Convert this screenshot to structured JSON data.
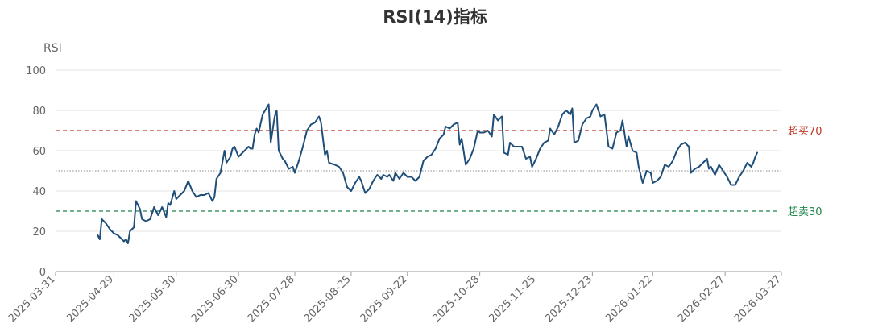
{
  "chart_data": {
    "type": "line",
    "title": "RSI(14)指标",
    "ylabel": "RSI",
    "xlabel": "",
    "ylim": [
      0,
      100
    ],
    "yticks": [
      0,
      20,
      40,
      60,
      80,
      100
    ],
    "grid": true,
    "x_range": [
      "2025-03-31",
      "2026-03-27"
    ],
    "xticks": [
      "2025-03-31",
      "2025-04-29",
      "2025-05-30",
      "2025-06-30",
      "2025-07-28",
      "2025-08-25",
      "2025-09-22",
      "2025-10-28",
      "2025-11-25",
      "2025-12-23",
      "2026-01-22",
      "2026-02-27",
      "2026-03-27"
    ],
    "reference_lines": [
      {
        "label": "超买70",
        "value": 70,
        "color": "#c0392b",
        "style": "dashed"
      },
      {
        "label": "超卖30",
        "value": 30,
        "color": "#1e8449",
        "style": "dashed"
      },
      {
        "label": "",
        "value": 50,
        "color": "#888888",
        "style": "dotted"
      }
    ],
    "series": [
      {
        "color": "#1f4e79",
        "points": [
          [
            "2025-04-21",
            18
          ],
          [
            "2025-04-22",
            16
          ],
          [
            "2025-04-23",
            26
          ],
          [
            "2025-04-25",
            24
          ],
          [
            "2025-04-27",
            21
          ],
          [
            "2025-04-29",
            19
          ],
          [
            "2025-05-01",
            18
          ],
          [
            "2025-05-04",
            15
          ],
          [
            "2025-05-05",
            16
          ],
          [
            "2025-05-06",
            14
          ],
          [
            "2025-05-07",
            20
          ],
          [
            "2025-05-09",
            22
          ],
          [
            "2025-05-10",
            35
          ],
          [
            "2025-05-12",
            31
          ],
          [
            "2025-05-13",
            26
          ],
          [
            "2025-05-15",
            25
          ],
          [
            "2025-05-17",
            26
          ],
          [
            "2025-05-19",
            32
          ],
          [
            "2025-05-21",
            28
          ],
          [
            "2025-05-23",
            32
          ],
          [
            "2025-05-25",
            27
          ],
          [
            "2025-05-26",
            34
          ],
          [
            "2025-05-27",
            33
          ],
          [
            "2025-05-29",
            40
          ],
          [
            "2025-05-30",
            36
          ],
          [
            "2025-06-01",
            38
          ],
          [
            "2025-06-03",
            40
          ],
          [
            "2025-06-05",
            45
          ],
          [
            "2025-06-07",
            40
          ],
          [
            "2025-06-09",
            37
          ],
          [
            "2025-06-11",
            38
          ],
          [
            "2025-06-13",
            38
          ],
          [
            "2025-06-15",
            39
          ],
          [
            "2025-06-17",
            35
          ],
          [
            "2025-06-18",
            37
          ],
          [
            "2025-06-19",
            46
          ],
          [
            "2025-06-21",
            49
          ],
          [
            "2025-06-23",
            60
          ],
          [
            "2025-06-24",
            54
          ],
          [
            "2025-06-26",
            57
          ],
          [
            "2025-06-27",
            61
          ],
          [
            "2025-06-28",
            62
          ],
          [
            "2025-06-30",
            57
          ],
          [
            "2025-07-02",
            59
          ],
          [
            "2025-07-03",
            60
          ],
          [
            "2025-07-05",
            62
          ],
          [
            "2025-07-06",
            61
          ],
          [
            "2025-07-07",
            61
          ],
          [
            "2025-07-08",
            68
          ],
          [
            "2025-07-09",
            71
          ],
          [
            "2025-07-10",
            69
          ],
          [
            "2025-07-12",
            78
          ],
          [
            "2025-07-15",
            83
          ],
          [
            "2025-07-16",
            64
          ],
          [
            "2025-07-18",
            77
          ],
          [
            "2025-07-19",
            80
          ],
          [
            "2025-07-20",
            60
          ],
          [
            "2025-07-22",
            56
          ],
          [
            "2025-07-23",
            55
          ],
          [
            "2025-07-25",
            51
          ],
          [
            "2025-07-27",
            52
          ],
          [
            "2025-07-28",
            49
          ],
          [
            "2025-07-30",
            55
          ],
          [
            "2025-08-01",
            62
          ],
          [
            "2025-08-03",
            70
          ],
          [
            "2025-08-05",
            73
          ],
          [
            "2025-08-07",
            74
          ],
          [
            "2025-08-09",
            77
          ],
          [
            "2025-08-10",
            74
          ],
          [
            "2025-08-12",
            58
          ],
          [
            "2025-08-13",
            60
          ],
          [
            "2025-08-14",
            54
          ],
          [
            "2025-08-17",
            53
          ],
          [
            "2025-08-19",
            52
          ],
          [
            "2025-08-21",
            49
          ],
          [
            "2025-08-23",
            42
          ],
          [
            "2025-08-25",
            40
          ],
          [
            "2025-08-27",
            44
          ],
          [
            "2025-08-29",
            47
          ],
          [
            "2025-08-30",
            45
          ],
          [
            "2025-09-01",
            39
          ],
          [
            "2025-09-03",
            41
          ],
          [
            "2025-09-05",
            45
          ],
          [
            "2025-09-07",
            48
          ],
          [
            "2025-09-09",
            46
          ],
          [
            "2025-09-10",
            48
          ],
          [
            "2025-09-12",
            47
          ],
          [
            "2025-09-13",
            48
          ],
          [
            "2025-09-15",
            45
          ],
          [
            "2025-09-16",
            49
          ],
          [
            "2025-09-18",
            46
          ],
          [
            "2025-09-20",
            49
          ],
          [
            "2025-09-22",
            47
          ],
          [
            "2025-09-24",
            47
          ],
          [
            "2025-09-26",
            45
          ],
          [
            "2025-09-28",
            47
          ],
          [
            "2025-09-30",
            55
          ],
          [
            "2025-10-02",
            57
          ],
          [
            "2025-10-04",
            58
          ],
          [
            "2025-10-06",
            61
          ],
          [
            "2025-10-08",
            66
          ],
          [
            "2025-10-10",
            68
          ],
          [
            "2025-10-11",
            72
          ],
          [
            "2025-10-13",
            71
          ],
          [
            "2025-10-15",
            73
          ],
          [
            "2025-10-17",
            74
          ],
          [
            "2025-10-18",
            63
          ],
          [
            "2025-10-19",
            66
          ],
          [
            "2025-10-21",
            53
          ],
          [
            "2025-10-23",
            56
          ],
          [
            "2025-10-25",
            61
          ],
          [
            "2025-10-27",
            70
          ],
          [
            "2025-10-28",
            69
          ],
          [
            "2025-10-30",
            69
          ],
          [
            "2025-11-01",
            70
          ],
          [
            "2025-11-03",
            67
          ],
          [
            "2025-11-04",
            78
          ],
          [
            "2025-11-06",
            75
          ],
          [
            "2025-11-08",
            77
          ],
          [
            "2025-11-09",
            59
          ],
          [
            "2025-11-11",
            58
          ],
          [
            "2025-11-12",
            64
          ],
          [
            "2025-11-14",
            62
          ],
          [
            "2025-11-16",
            62
          ],
          [
            "2025-11-18",
            62
          ],
          [
            "2025-11-20",
            56
          ],
          [
            "2025-11-22",
            57
          ],
          [
            "2025-11-23",
            52
          ],
          [
            "2025-11-25",
            56
          ],
          [
            "2025-11-27",
            61
          ],
          [
            "2025-11-29",
            64
          ],
          [
            "2025-12-01",
            65
          ],
          [
            "2025-12-02",
            71
          ],
          [
            "2025-12-04",
            68
          ],
          [
            "2025-12-06",
            72
          ],
          [
            "2025-12-08",
            78
          ],
          [
            "2025-12-10",
            80
          ],
          [
            "2025-12-12",
            78
          ],
          [
            "2025-12-13",
            81
          ],
          [
            "2025-12-14",
            64
          ],
          [
            "2025-12-16",
            65
          ],
          [
            "2025-12-18",
            73
          ],
          [
            "2025-12-20",
            76
          ],
          [
            "2025-12-22",
            77
          ],
          [
            "2025-12-23",
            80
          ],
          [
            "2025-12-25",
            83
          ],
          [
            "2025-12-27",
            77
          ],
          [
            "2025-12-29",
            78
          ],
          [
            "2025-12-31",
            62
          ],
          [
            "2026-01-02",
            61
          ],
          [
            "2026-01-04",
            69
          ],
          [
            "2026-01-06",
            70
          ],
          [
            "2026-01-07",
            75
          ],
          [
            "2026-01-09",
            62
          ],
          [
            "2026-01-10",
            67
          ],
          [
            "2026-01-12",
            60
          ],
          [
            "2026-01-14",
            59
          ],
          [
            "2026-01-15",
            52
          ],
          [
            "2026-01-17",
            44
          ],
          [
            "2026-01-19",
            50
          ],
          [
            "2026-01-21",
            49
          ],
          [
            "2026-01-22",
            44
          ],
          [
            "2026-01-24",
            45
          ],
          [
            "2026-01-26",
            47
          ],
          [
            "2026-01-28",
            53
          ],
          [
            "2026-01-30",
            52
          ],
          [
            "2026-02-01",
            55
          ],
          [
            "2026-02-03",
            60
          ],
          [
            "2026-02-05",
            63
          ],
          [
            "2026-02-07",
            64
          ],
          [
            "2026-02-09",
            62
          ],
          [
            "2026-02-10",
            49
          ],
          [
            "2026-02-12",
            51
          ],
          [
            "2026-02-14",
            52
          ],
          [
            "2026-02-16",
            54
          ],
          [
            "2026-02-18",
            56
          ],
          [
            "2026-02-19",
            51
          ],
          [
            "2026-02-20",
            52
          ],
          [
            "2026-02-22",
            48
          ],
          [
            "2026-02-24",
            53
          ],
          [
            "2026-02-26",
            50
          ],
          [
            "2026-02-28",
            47
          ],
          [
            "2026-03-02",
            43
          ],
          [
            "2026-03-04",
            43
          ],
          [
            "2026-03-06",
            47
          ],
          [
            "2026-03-08",
            50
          ],
          [
            "2026-03-10",
            54
          ],
          [
            "2026-03-12",
            52
          ],
          [
            "2026-03-13",
            54
          ],
          [
            "2026-03-14",
            57
          ],
          [
            "2026-03-15",
            59
          ]
        ]
      }
    ]
  }
}
